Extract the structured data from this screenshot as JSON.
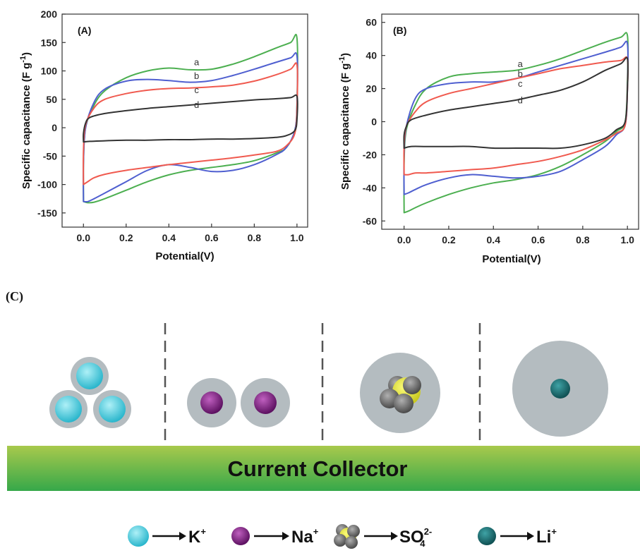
{
  "chart_data": [
    {
      "type": "line",
      "panel_label": "(A)",
      "xlabel": "Potential(V)",
      "ylabel": "Specific capacitance (F g",
      "ylabel_sup": "-1",
      "ylabel_tail": ")",
      "xlim": [
        -0.1,
        1.05
      ],
      "ylim": [
        -175,
        200
      ],
      "xticks": [
        0.0,
        0.2,
        0.4,
        0.6,
        0.8,
        1.0
      ],
      "xtick_labels": [
        "0.0",
        "0.2",
        "0.4",
        "0.6",
        "0.8",
        "1.0"
      ],
      "yticks": [
        -150,
        -100,
        -50,
        0,
        50,
        100,
        150,
        200
      ],
      "ytick_labels": [
        "-150",
        "-100",
        "-50",
        "0",
        "50",
        "100",
        "150",
        "200"
      ],
      "series": [
        {
          "name": "a",
          "color": "#4caf50",
          "x": [
            0.0,
            0.0,
            0.01,
            0.05,
            0.1,
            0.2,
            0.3,
            0.4,
            0.5,
            0.6,
            0.7,
            0.8,
            0.9,
            0.97,
            1.0,
            1.0,
            0.99,
            0.95,
            0.9,
            0.8,
            0.7,
            0.6,
            0.5,
            0.4,
            0.3,
            0.2,
            0.1,
            0.05,
            0.02,
            0.0
          ],
          "y": [
            -130,
            -60,
            0,
            40,
            65,
            88,
            100,
            105,
            102,
            103,
            112,
            125,
            140,
            150,
            157,
            40,
            -5,
            -35,
            -45,
            -58,
            -65,
            -70,
            -75,
            -83,
            -95,
            -110,
            -125,
            -131,
            -132,
            -130
          ]
        },
        {
          "name": "b",
          "color": "#4f5fd0",
          "x": [
            0.0,
            0.0,
            0.01,
            0.05,
            0.1,
            0.2,
            0.3,
            0.4,
            0.5,
            0.6,
            0.7,
            0.8,
            0.9,
            0.97,
            1.0,
            1.0,
            0.99,
            0.95,
            0.9,
            0.8,
            0.7,
            0.6,
            0.5,
            0.4,
            0.3,
            0.2,
            0.1,
            0.05,
            0.02,
            0.0
          ],
          "y": [
            -130,
            -60,
            0,
            45,
            68,
            82,
            85,
            83,
            80,
            83,
            92,
            103,
            115,
            123,
            126,
            40,
            -5,
            -35,
            -48,
            -65,
            -75,
            -77,
            -70,
            -65,
            -75,
            -95,
            -115,
            -125,
            -130,
            -130
          ]
        },
        {
          "name": "c",
          "color": "#f05a4f",
          "x": [
            0.0,
            0.0,
            0.01,
            0.05,
            0.1,
            0.2,
            0.3,
            0.4,
            0.5,
            0.6,
            0.7,
            0.8,
            0.9,
            0.97,
            1.0,
            1.0,
            0.99,
            0.95,
            0.9,
            0.8,
            0.7,
            0.6,
            0.5,
            0.4,
            0.3,
            0.2,
            0.1,
            0.05,
            0.02,
            0.0
          ],
          "y": [
            -100,
            -40,
            5,
            35,
            50,
            60,
            66,
            69,
            70,
            72,
            75,
            82,
            93,
            103,
            110,
            35,
            -10,
            -32,
            -42,
            -48,
            -53,
            -57,
            -61,
            -65,
            -70,
            -75,
            -82,
            -88,
            -95,
            -100
          ]
        },
        {
          "name": "d",
          "color": "#333333",
          "x": [
            0.0,
            0.0,
            0.01,
            0.03,
            0.1,
            0.2,
            0.3,
            0.4,
            0.5,
            0.6,
            0.7,
            0.8,
            0.9,
            0.97,
            1.0,
            1.0,
            0.99,
            0.95,
            0.9,
            0.8,
            0.7,
            0.6,
            0.5,
            0.4,
            0.3,
            0.2,
            0.1,
            0.03,
            0.0
          ],
          "y": [
            -25,
            -10,
            8,
            18,
            25,
            30,
            34,
            37,
            40,
            43,
            46,
            49,
            51,
            53,
            55,
            15,
            -5,
            -14,
            -17,
            -19,
            -20,
            -20,
            -21,
            -21,
            -22,
            -22,
            -23,
            -24,
            -25
          ]
        }
      ],
      "curve_labels": [
        {
          "text": "a",
          "x": 0.53,
          "y": 110
        },
        {
          "text": "b",
          "x": 0.53,
          "y": 86
        },
        {
          "text": "c",
          "x": 0.53,
          "y": 61
        },
        {
          "text": "d",
          "x": 0.53,
          "y": 35
        }
      ]
    },
    {
      "type": "line",
      "panel_label": "(B)",
      "xlabel": "Potential(V)",
      "ylabel": "Specific capacitance (F g",
      "ylabel_sup": "-1",
      "ylabel_tail": ")",
      "xlim": [
        -0.1,
        1.05
      ],
      "ylim": [
        -65,
        65
      ],
      "xticks": [
        0.0,
        0.2,
        0.4,
        0.6,
        0.8,
        1.0
      ],
      "xtick_labels": [
        "0.0",
        "0.2",
        "0.4",
        "0.6",
        "0.8",
        "1.0"
      ],
      "yticks": [
        -60,
        -40,
        -20,
        0,
        20,
        40,
        60
      ],
      "ytick_labels": [
        "-60",
        "-40",
        "-20",
        "0",
        "20",
        "40",
        "60"
      ],
      "series": [
        {
          "name": "a",
          "color": "#4caf50",
          "x": [
            0.0,
            0.0,
            0.01,
            0.05,
            0.1,
            0.2,
            0.3,
            0.4,
            0.5,
            0.6,
            0.7,
            0.8,
            0.9,
            0.97,
            1.0,
            1.0,
            0.99,
            0.95,
            0.9,
            0.8,
            0.7,
            0.6,
            0.5,
            0.4,
            0.3,
            0.2,
            0.1,
            0.05,
            0.02,
            0.0
          ],
          "y": [
            -55,
            -25,
            -5,
            10,
            20,
            27,
            29,
            30,
            31,
            34,
            38,
            43,
            48,
            51,
            52,
            25,
            0,
            -6,
            -12,
            -20,
            -27,
            -32,
            -35,
            -37,
            -40,
            -44,
            -49,
            -52,
            -54,
            -55
          ]
        },
        {
          "name": "b",
          "color": "#4f5fd0",
          "x": [
            0.0,
            0.0,
            0.01,
            0.05,
            0.1,
            0.2,
            0.3,
            0.4,
            0.5,
            0.6,
            0.7,
            0.8,
            0.9,
            0.97,
            1.0,
            1.0,
            0.99,
            0.95,
            0.9,
            0.8,
            0.7,
            0.6,
            0.5,
            0.4,
            0.3,
            0.2,
            0.1,
            0.05,
            0.02,
            0.0
          ],
          "y": [
            -44,
            -20,
            -3,
            14,
            20,
            23,
            24,
            24,
            26,
            30,
            34,
            38,
            42,
            45,
            47,
            20,
            -2,
            -8,
            -15,
            -23,
            -30,
            -33,
            -34,
            -33,
            -32,
            -34,
            -38,
            -41,
            -43,
            -44
          ]
        },
        {
          "name": "c",
          "color": "#f05a4f",
          "x": [
            0.0,
            0.0,
            0.01,
            0.05,
            0.1,
            0.2,
            0.3,
            0.4,
            0.5,
            0.6,
            0.7,
            0.8,
            0.9,
            0.97,
            1.0,
            1.0,
            0.99,
            0.95,
            0.9,
            0.8,
            0.7,
            0.6,
            0.5,
            0.4,
            0.3,
            0.2,
            0.1,
            0.05,
            0.02,
            0.0
          ],
          "y": [
            -32,
            -15,
            -3,
            6,
            12,
            17,
            20,
            23,
            26,
            29,
            32,
            34,
            36,
            37,
            38,
            20,
            -2,
            -7,
            -11,
            -17,
            -21,
            -24,
            -26,
            -28,
            -29,
            -30,
            -31,
            -31,
            -32,
            -32
          ]
        },
        {
          "name": "d",
          "color": "#333333",
          "x": [
            0.0,
            0.0,
            0.01,
            0.03,
            0.1,
            0.2,
            0.3,
            0.4,
            0.5,
            0.6,
            0.7,
            0.8,
            0.9,
            0.97,
            1.0,
            1.0,
            0.99,
            0.95,
            0.9,
            0.8,
            0.7,
            0.6,
            0.5,
            0.4,
            0.3,
            0.2,
            0.1,
            0.03,
            0.0
          ],
          "y": [
            -16,
            -8,
            -3,
            1,
            4,
            7,
            9,
            11,
            13,
            16,
            19,
            24,
            31,
            35,
            38,
            20,
            0,
            -5,
            -10,
            -14,
            -16,
            -16,
            -16,
            -16,
            -15,
            -15,
            -15,
            -15,
            -16
          ]
        }
      ],
      "curve_labels": [
        {
          "text": "a",
          "x": 0.52,
          "y": 33
        },
        {
          "text": "b",
          "x": 0.52,
          "y": 27
        },
        {
          "text": "c",
          "x": 0.52,
          "y": 21
        },
        {
          "text": "d",
          "x": 0.52,
          "y": 11
        }
      ]
    }
  ],
  "diagram": {
    "panel_label": "(C)",
    "collector_label": "Current Collector",
    "legend": [
      {
        "ion": "K",
        "sup": "+",
        "sub": "",
        "color": "#3fc8dc"
      },
      {
        "ion": "Na",
        "sup": "+",
        "sub": "",
        "color": "#7a1f7a"
      },
      {
        "ion": "SO",
        "sup": "2-",
        "sub": "4",
        "color": "#d9d92a"
      },
      {
        "ion": "Li",
        "sup": "+",
        "sub": "",
        "color": "#1e6f73"
      }
    ],
    "colors": {
      "hydration_shell": "#b4bcc0",
      "collector_top": "#a6c94a",
      "collector_bottom": "#3aa84a"
    }
  }
}
